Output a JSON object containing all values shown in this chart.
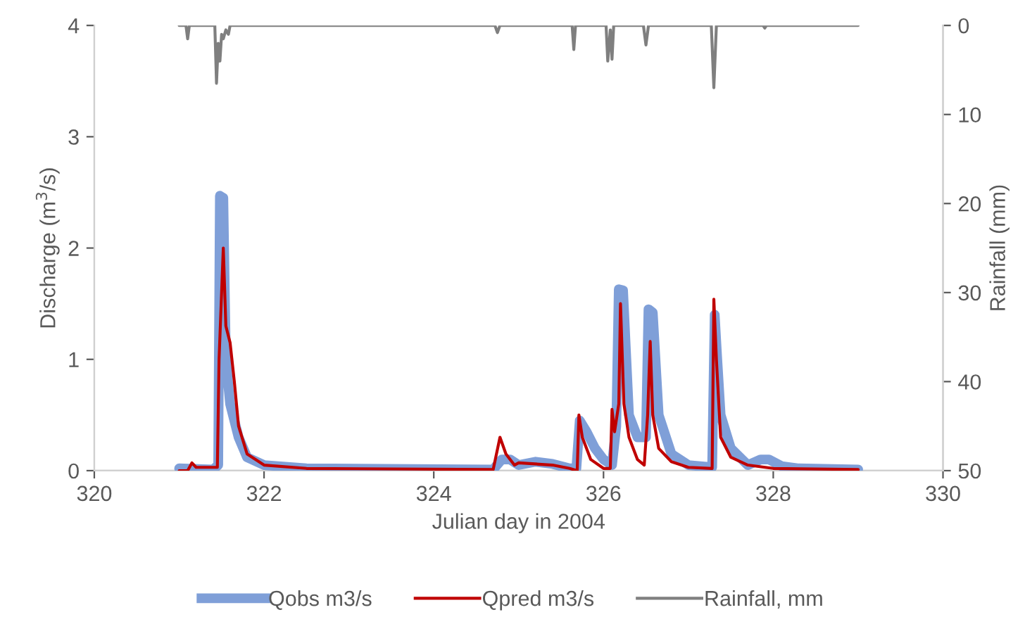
{
  "chart_data": {
    "type": "line",
    "xlabel": "Julian day in 2004",
    "ylabel": "Discharge (m$^{3}$/s)",
    "y2label": "Rainfall (mm)",
    "xlim": [
      320,
      330
    ],
    "xticks": [
      320,
      322,
      324,
      326,
      328,
      330
    ],
    "ylim": [
      0,
      4
    ],
    "yticks": [
      0,
      1,
      2,
      3,
      4
    ],
    "y2lim": [
      50,
      0
    ],
    "y2ticks": [
      0,
      10,
      20,
      30,
      40,
      50
    ],
    "legend": "bottom",
    "grid": false,
    "series": [
      {
        "name": "Qobs m3/s",
        "color": "#7f9fd8",
        "x": [
          321.0,
          321.4,
          321.46,
          321.48,
          321.52,
          321.55,
          321.6,
          321.7,
          321.8,
          322.0,
          322.5,
          324.7,
          324.8,
          324.9,
          325.0,
          325.2,
          325.4,
          325.6,
          325.68,
          325.72,
          325.8,
          325.9,
          326.0,
          326.1,
          326.15,
          326.18,
          326.23,
          326.3,
          326.4,
          326.5,
          326.53,
          326.58,
          326.65,
          326.8,
          327.0,
          327.28,
          327.31,
          327.34,
          327.38,
          327.5,
          327.7,
          327.85,
          327.95,
          328.1,
          328.3,
          329.0
        ],
        "values": [
          0.02,
          0.01,
          0.05,
          2.47,
          2.45,
          1.0,
          0.6,
          0.3,
          0.12,
          0.05,
          0.02,
          0.01,
          0.1,
          0.1,
          0.05,
          0.08,
          0.06,
          0.02,
          0.02,
          0.45,
          0.35,
          0.2,
          0.1,
          0.05,
          0.4,
          1.63,
          1.62,
          0.5,
          0.3,
          0.3,
          1.45,
          1.42,
          0.5,
          0.15,
          0.05,
          0.03,
          1.4,
          1.0,
          0.5,
          0.2,
          0.05,
          0.1,
          0.1,
          0.04,
          0.02,
          0.01
        ]
      },
      {
        "name": "Qpred m3/s",
        "color": "#c00000",
        "x": [
          321.0,
          321.1,
          321.15,
          321.2,
          321.45,
          321.47,
          321.52,
          321.55,
          321.6,
          321.65,
          321.7,
          321.8,
          322.0,
          322.5,
          324.7,
          324.78,
          324.85,
          324.95,
          325.0,
          325.4,
          325.6,
          325.69,
          325.71,
          325.75,
          325.85,
          326.0,
          326.08,
          326.1,
          326.13,
          326.18,
          326.2,
          326.24,
          326.3,
          326.4,
          326.48,
          326.52,
          326.55,
          326.58,
          326.65,
          326.8,
          327.0,
          327.28,
          327.3,
          327.33,
          327.38,
          327.5,
          327.7,
          328.0,
          329.0
        ],
        "values": [
          0.0,
          0.0,
          0.07,
          0.03,
          0.03,
          1.0,
          2.0,
          1.3,
          1.15,
          0.8,
          0.4,
          0.15,
          0.05,
          0.02,
          0.01,
          0.3,
          0.15,
          0.05,
          0.07,
          0.05,
          0.02,
          0.0,
          0.5,
          0.3,
          0.1,
          0.02,
          0.02,
          0.55,
          0.35,
          0.6,
          1.5,
          0.6,
          0.3,
          0.1,
          0.05,
          0.5,
          1.16,
          0.5,
          0.2,
          0.08,
          0.03,
          0.02,
          1.54,
          1.0,
          0.3,
          0.12,
          0.05,
          0.02,
          0.01
        ]
      },
      {
        "name": "Rainfall, mm",
        "color": "#7f7f7f",
        "axis": "y2",
        "x": [
          321.0,
          321.08,
          321.1,
          321.12,
          321.42,
          321.44,
          321.46,
          321.48,
          321.5,
          321.52,
          321.55,
          321.58,
          321.6,
          324.72,
          324.75,
          324.78,
          325.63,
          325.65,
          325.67,
          326.03,
          326.05,
          326.08,
          326.1,
          326.12,
          326.15,
          326.47,
          326.5,
          326.53,
          327.27,
          327.3,
          327.33,
          327.88,
          327.9,
          327.92,
          329.0
        ],
        "values": [
          0,
          0,
          1.5,
          0,
          0,
          6.5,
          2.0,
          4.0,
          1.0,
          1.5,
          0.5,
          1.0,
          0,
          0,
          0.8,
          0,
          0,
          2.7,
          0,
          0,
          4.0,
          0.5,
          3.8,
          0,
          0,
          0,
          2.2,
          0,
          0,
          7.0,
          0,
          0,
          0.3,
          0,
          0
        ]
      }
    ]
  }
}
